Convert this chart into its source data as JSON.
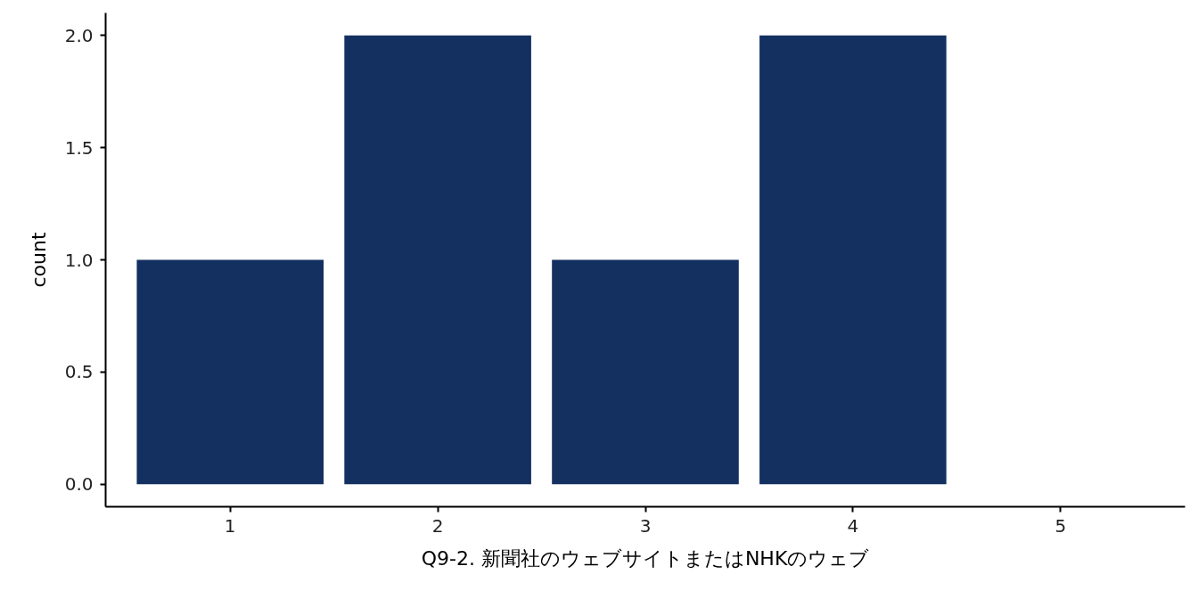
{
  "chart_data": {
    "type": "bar",
    "xlabel": "Q9-2. 新聞社のウェブサイトまたはNHKのウェブ",
    "ylabel": "count",
    "categories": [
      "1",
      "2",
      "3",
      "4",
      "5"
    ],
    "values": [
      1,
      2,
      1,
      2,
      null
    ],
    "color": "#143060",
    "ylim": [
      -0.1,
      2.1
    ],
    "yticks": [
      {
        "value": 0,
        "label": "0.0"
      },
      {
        "value": 0.5,
        "label": "0.5"
      },
      {
        "value": 1,
        "label": "1.0"
      },
      {
        "value": 1.5,
        "label": "1.5"
      },
      {
        "value": 2,
        "label": "2.0"
      }
    ]
  }
}
